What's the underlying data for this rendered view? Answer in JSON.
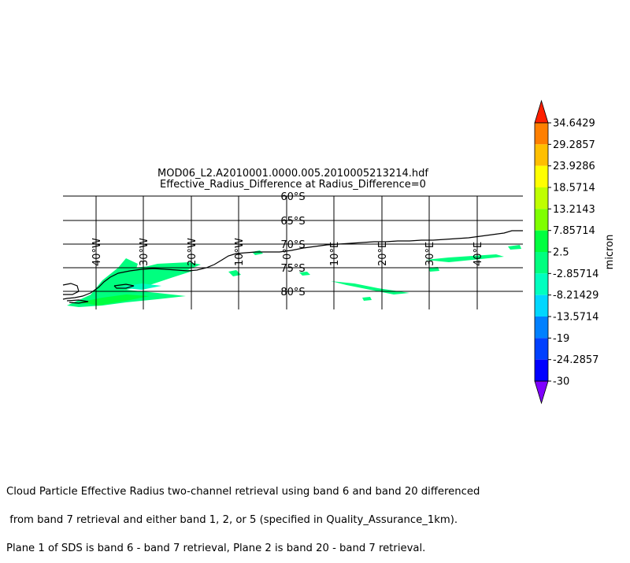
{
  "title": {
    "line1": "MOD06_L2.A2010001.0000.005.2010005213214.hdf",
    "line2": "Effective_Radius_Difference at Radius_Difference=0"
  },
  "map": {
    "projection": "South Polar Stereographic (plate view)",
    "lat_labels": [
      "60°S",
      "65°S",
      "70°S",
      "75°S",
      "80°S"
    ],
    "lon_labels": [
      "40°W",
      "30°W",
      "20°W",
      "10°W",
      "0°",
      "10°E",
      "20°E",
      "30°E",
      "40°E"
    ],
    "lon_values": [
      -40,
      -30,
      -20,
      -10,
      0,
      10,
      20,
      30,
      40
    ],
    "lat_values": [
      -60,
      -65,
      -70,
      -75,
      -80
    ]
  },
  "colorbar": {
    "label": "micron",
    "ticks": [
      "34.6429",
      "29.2857",
      "23.9286",
      "18.5714",
      "13.2143",
      "7.85714",
      "2.5",
      "-2.85714",
      "-8.21429",
      "-13.5714",
      "-19",
      "-24.2857",
      "-30"
    ],
    "colors": [
      "#ff7f00",
      "#ffbf00",
      "#ffff00",
      "#bfff00",
      "#7fff00",
      "#00ff3f",
      "#00ff7f",
      "#00ffbf",
      "#00d7ff",
      "#0080ff",
      "#0040ff",
      "#0000ff"
    ],
    "over_color": "#ff2000",
    "under_color": "#7f00ff"
  },
  "caption": [
    "Cloud Particle Effective Radius two-channel retrieval using band 6 and band 20 differenced",
    " from band 7 retrieval and either band 1, 2, or 5 (specified in Quality_Assurance_1km).",
    "Plane 1 of SDS is band 6 - band 7 retrieval, Plane 2 is band 20 - band 7 retrieval."
  ]
}
